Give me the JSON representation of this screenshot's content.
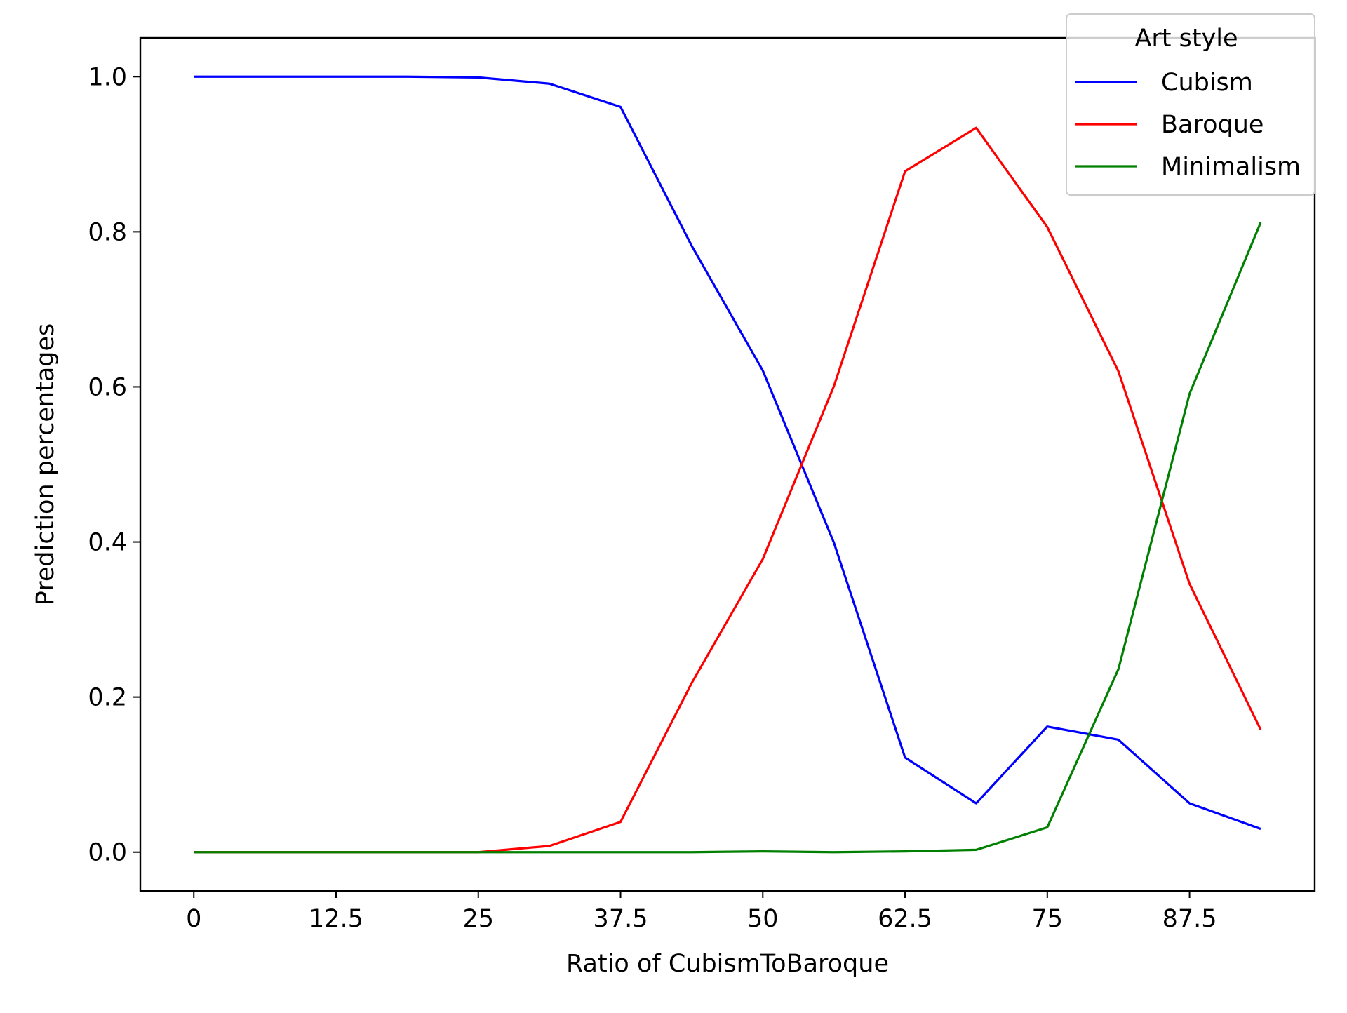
{
  "chart_data": {
    "type": "line",
    "title": "",
    "xlabel": "Ratio of CubismToBaroque",
    "ylabel": "Prediction percentages",
    "xlim": [
      -4.7,
      98.5
    ],
    "ylim": [
      -0.05,
      1.05
    ],
    "x_ticks": [
      0,
      12.5,
      25,
      37.5,
      50,
      62.5,
      75,
      87.5
    ],
    "x_tick_labels": [
      "0",
      "12.5",
      "25",
      "37.5",
      "50",
      "62.5",
      "75",
      "87.5"
    ],
    "y_ticks": [
      0.0,
      0.2,
      0.4,
      0.6,
      0.8,
      1.0
    ],
    "y_tick_labels": [
      "0.0",
      "0.2",
      "0.4",
      "0.6",
      "0.8",
      "1.0"
    ],
    "x": [
      0,
      6.25,
      12.5,
      18.75,
      25,
      31.25,
      37.5,
      43.75,
      50,
      56.25,
      62.5,
      68.75,
      75,
      81.25,
      87.5,
      93.75
    ],
    "series": [
      {
        "name": "Cubism",
        "color": "#0000ff",
        "values": [
          1.0,
          1.0,
          1.0,
          1.0,
          0.999,
          0.991,
          0.961,
          0.782,
          0.621,
          0.399,
          0.122,
          0.063,
          0.162,
          0.145,
          0.063,
          0.03
        ]
      },
      {
        "name": "Baroque",
        "color": "#ff0000",
        "values": [
          0.0,
          0.0,
          0.0,
          0.0,
          0.0,
          0.008,
          0.039,
          0.218,
          0.378,
          0.601,
          0.878,
          0.934,
          0.806,
          0.62,
          0.346,
          0.158
        ]
      },
      {
        "name": "Minimalism",
        "color": "#008000",
        "values": [
          0.0,
          0.0,
          0.0,
          0.0,
          0.0,
          0.0,
          0.0,
          0.0,
          0.001,
          0.0,
          0.001,
          0.003,
          0.032,
          0.236,
          0.591,
          0.812
        ]
      }
    ],
    "legend": {
      "title": "Art style",
      "placement": "top-right"
    },
    "grid": false
  }
}
